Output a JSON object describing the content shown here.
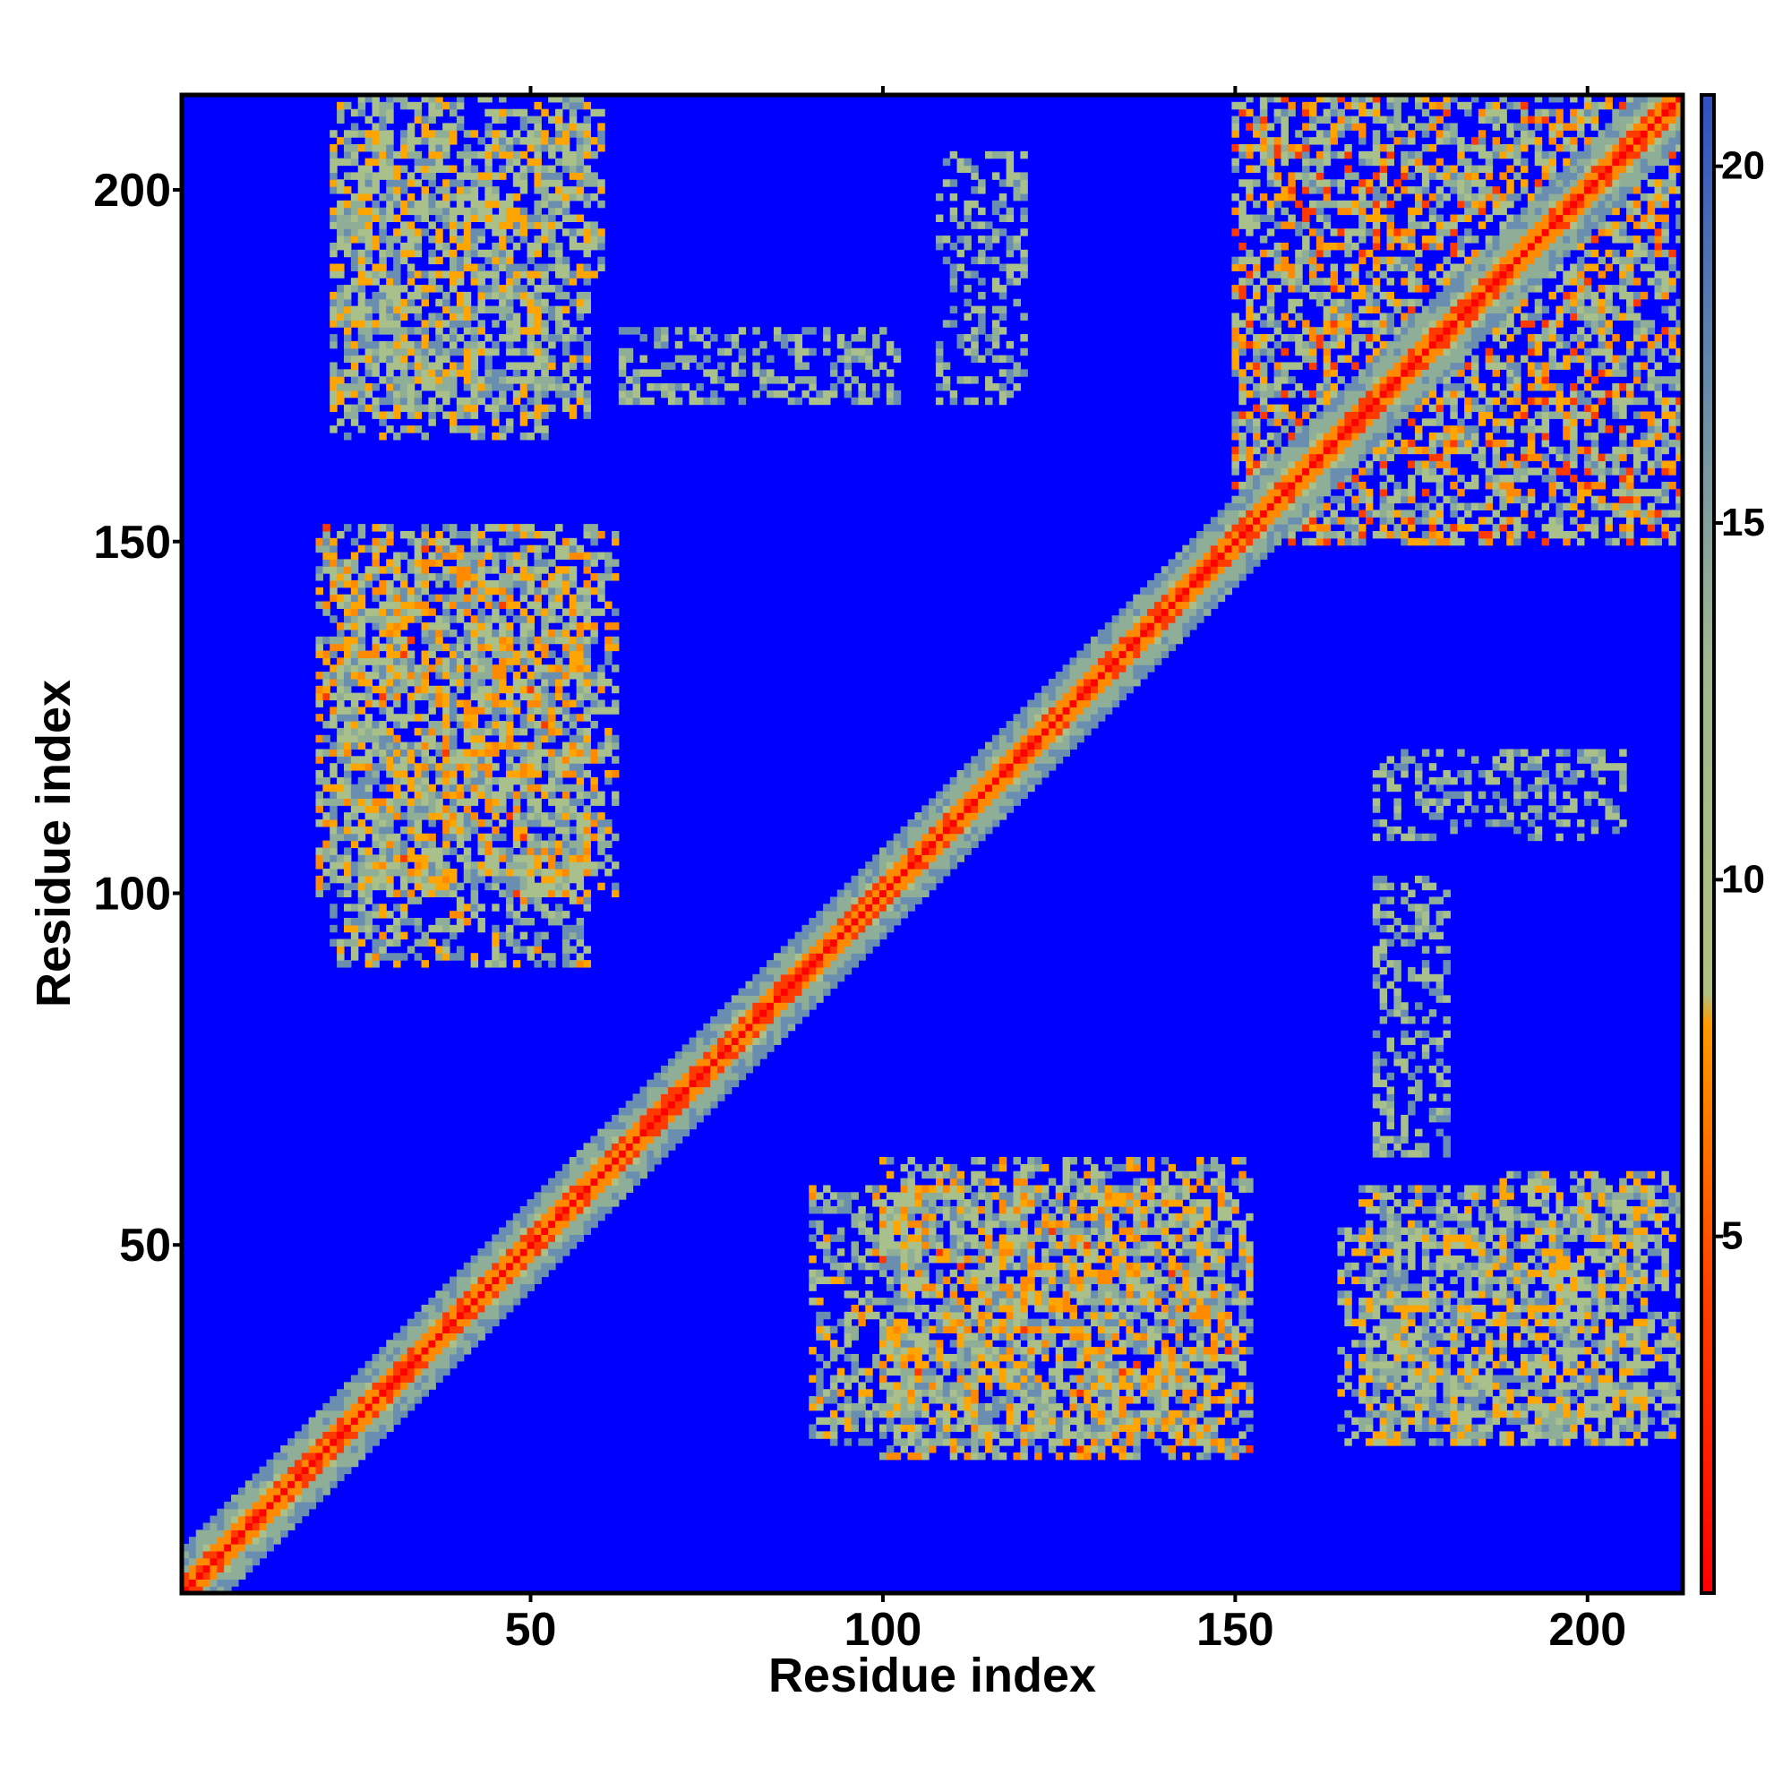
{
  "chart_data": {
    "type": "heatmap",
    "title": "",
    "xlabel": "Residue index",
    "ylabel": "Residue index",
    "xlim": [
      1,
      213
    ],
    "ylim": [
      1,
      213
    ],
    "x_ticks": [
      50,
      100,
      150,
      200
    ],
    "y_ticks": [
      50,
      100,
      150,
      200
    ],
    "colorbar": {
      "range": [
        0,
        21
      ],
      "ticks": [
        5,
        10,
        15,
        20
      ],
      "colors": [
        "#ff0000",
        "#ff8c00",
        "#a9c08a",
        "#4a6fb0",
        "#0000ff"
      ],
      "background_color": "#0000ff"
    },
    "diagonal_value": 2,
    "contact_regions": [
      {
        "x_range": [
          1,
          213
        ],
        "y_range": [
          1,
          213
        ],
        "along_diagonal": true,
        "value_range": [
          2,
          12
        ]
      },
      {
        "x_range": [
          22,
          58
        ],
        "y_range": [
          90,
          148
        ],
        "min_value": 5
      },
      {
        "x_range": [
          22,
          58
        ],
        "y_range": [
          168,
          208
        ],
        "min_value": 6
      },
      {
        "x_range": [
          63,
          102
        ],
        "y_range": [
          170,
          180
        ],
        "min_value": 8
      },
      {
        "x_range": [
          100,
          152
        ],
        "y_range": [
          20,
          62
        ],
        "min_value": 4
      },
      {
        "x_range": [
          165,
          188
        ],
        "y_range": [
          22,
          52
        ],
        "min_value": 6
      },
      {
        "x_range": [
          188,
          213
        ],
        "y_range": [
          22,
          60
        ],
        "min_value": 6
      },
      {
        "x_range": [
          170,
          205
        ],
        "y_range": [
          108,
          120
        ],
        "min_value": 8
      },
      {
        "x_range": [
          150,
          213
        ],
        "y_range": [
          150,
          213
        ],
        "min_value": 3
      }
    ]
  },
  "axes": {
    "x_tick_labels": [
      "50",
      "100",
      "150",
      "200"
    ],
    "y_tick_labels": [
      "50",
      "100",
      "150",
      "200"
    ],
    "colorbar_tick_labels": [
      "5",
      "10",
      "15",
      "20"
    ]
  }
}
